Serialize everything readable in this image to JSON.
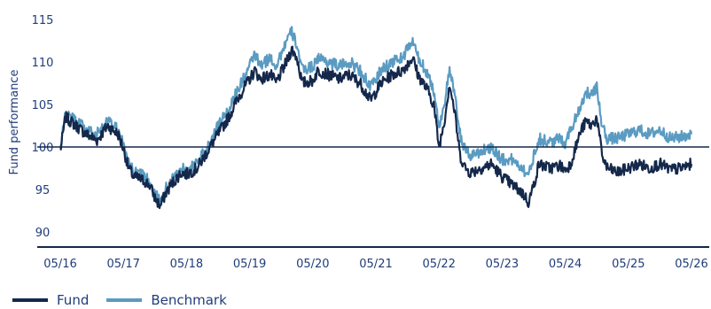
{
  "chart_data": {
    "type": "line",
    "title": "",
    "xlabel": "",
    "ylabel": "Fund performance",
    "ylim": [
      88,
      117
    ],
    "yticks": [
      90,
      95,
      100,
      105,
      110,
      115
    ],
    "x_ticks": [
      "05/16",
      "05/17",
      "05/18",
      "05/19",
      "05/20",
      "05/21",
      "05/22",
      "05/23",
      "05/24",
      "05/25",
      "05/26"
    ],
    "x_range": [
      "05/16",
      "05/26"
    ],
    "reference_line": 100,
    "legend_position": "bottom-left",
    "series": [
      {
        "name": "Fund",
        "color": "#14284b",
        "points": [
          [
            "2016-05",
            99.5
          ],
          [
            "2016-06",
            103.5
          ],
          [
            "2016-08",
            102.5
          ],
          [
            "2016-10",
            101.5
          ],
          [
            "2016-12",
            100.8
          ],
          [
            "2017-02",
            102.5
          ],
          [
            "2017-04",
            101.5
          ],
          [
            "2017-05",
            99.8
          ],
          [
            "2017-06",
            97.5
          ],
          [
            "2017-07",
            96.5
          ],
          [
            "2017-09",
            96.0
          ],
          [
            "2017-10",
            95.5
          ],
          [
            "2017-11",
            94.0
          ],
          [
            "2017-12",
            93.0
          ],
          [
            "2018-01",
            94.5
          ],
          [
            "2018-02",
            95.5
          ],
          [
            "2018-04",
            97.0
          ],
          [
            "2018-05",
            96.8
          ],
          [
            "2018-07",
            97.5
          ],
          [
            "2018-09",
            99.5
          ],
          [
            "2018-11",
            101.5
          ],
          [
            "2019-01",
            103.5
          ],
          [
            "2019-03",
            106.0
          ],
          [
            "2019-05",
            108.0
          ],
          [
            "2019-06",
            109.0
          ],
          [
            "2019-07",
            108.0
          ],
          [
            "2019-09",
            108.5
          ],
          [
            "2019-10",
            107.5
          ],
          [
            "2019-12",
            110.0
          ],
          [
            "2020-01",
            111.5
          ],
          [
            "2020-02",
            110.5
          ],
          [
            "2020-03",
            107.5
          ],
          [
            "2020-05",
            107.8
          ],
          [
            "2020-06",
            109.0
          ],
          [
            "2020-08",
            108.5
          ],
          [
            "2020-10",
            108.0
          ],
          [
            "2020-12",
            108.5
          ],
          [
            "2021-02",
            107.5
          ],
          [
            "2021-04",
            105.5
          ],
          [
            "2021-06",
            107.5
          ],
          [
            "2021-08",
            108.5
          ],
          [
            "2021-10",
            109.0
          ],
          [
            "2021-12",
            110.5
          ],
          [
            "2022-01",
            108.5
          ],
          [
            "2022-03",
            106.5
          ],
          [
            "2022-04",
            105.0
          ],
          [
            "2022-05",
            100.0
          ],
          [
            "2022-06",
            103.0
          ],
          [
            "2022-07",
            107.5
          ],
          [
            "2022-08",
            104.0
          ],
          [
            "2022-09",
            99.0
          ],
          [
            "2022-10",
            97.5
          ],
          [
            "2022-11",
            97.0
          ],
          [
            "2023-01",
            97.5
          ],
          [
            "2023-03",
            98.0
          ],
          [
            "2023-05",
            96.5
          ],
          [
            "2023-07",
            95.5
          ],
          [
            "2023-09",
            94.5
          ],
          [
            "2023-10",
            93.5
          ],
          [
            "2023-11",
            95.5
          ],
          [
            "2023-12",
            98.0
          ],
          [
            "2024-02",
            97.5
          ],
          [
            "2024-04",
            97.8
          ],
          [
            "2024-05",
            97.3
          ],
          [
            "2024-06",
            98.0
          ],
          [
            "2024-07",
            100.0
          ],
          [
            "2024-08",
            102.0
          ],
          [
            "2024-09",
            103.0
          ],
          [
            "2024-10",
            102.5
          ],
          [
            "2024-11",
            103.5
          ],
          [
            "2024-12",
            99.0
          ],
          [
            "2025-01",
            97.5
          ],
          [
            "2025-03",
            97.0
          ],
          [
            "2025-05",
            97.5
          ],
          [
            "2025-07",
            98.0
          ],
          [
            "2025-09",
            97.5
          ],
          [
            "2025-11",
            98.0
          ],
          [
            "2026-01",
            97.3
          ],
          [
            "2026-03",
            97.5
          ],
          [
            "2026-05",
            98.0
          ]
        ]
      },
      {
        "name": "Benchmark",
        "color": "#5b9bc2",
        "points": [
          [
            "2016-05",
            99.8
          ],
          [
            "2016-06",
            104.0
          ],
          [
            "2016-08",
            103.0
          ],
          [
            "2016-10",
            102.0
          ],
          [
            "2016-12",
            101.5
          ],
          [
            "2017-02",
            103.0
          ],
          [
            "2017-04",
            102.0
          ],
          [
            "2017-05",
            100.2
          ],
          [
            "2017-06",
            98.0
          ],
          [
            "2017-07",
            97.0
          ],
          [
            "2017-09",
            96.5
          ],
          [
            "2017-10",
            96.0
          ],
          [
            "2017-11",
            94.5
          ],
          [
            "2017-12",
            93.5
          ],
          [
            "2018-01",
            95.0
          ],
          [
            "2018-02",
            96.0
          ],
          [
            "2018-04",
            97.5
          ],
          [
            "2018-05",
            97.5
          ],
          [
            "2018-07",
            98.0
          ],
          [
            "2018-09",
            100.0
          ],
          [
            "2018-11",
            102.5
          ],
          [
            "2019-01",
            104.5
          ],
          [
            "2019-03",
            107.0
          ],
          [
            "2019-05",
            109.5
          ],
          [
            "2019-06",
            111.0
          ],
          [
            "2019-07",
            109.5
          ],
          [
            "2019-09",
            110.5
          ],
          [
            "2019-10",
            109.5
          ],
          [
            "2019-12",
            112.5
          ],
          [
            "2020-01",
            113.5
          ],
          [
            "2020-02",
            112.0
          ],
          [
            "2020-03",
            109.0
          ],
          [
            "2020-05",
            109.5
          ],
          [
            "2020-06",
            110.5
          ],
          [
            "2020-08",
            110.0
          ],
          [
            "2020-10",
            109.5
          ],
          [
            "2020-12",
            110.0
          ],
          [
            "2021-02",
            109.0
          ],
          [
            "2021-04",
            107.0
          ],
          [
            "2021-06",
            109.0
          ],
          [
            "2021-08",
            110.0
          ],
          [
            "2021-10",
            110.5
          ],
          [
            "2021-12",
            112.5
          ],
          [
            "2022-01",
            110.5
          ],
          [
            "2022-03",
            108.5
          ],
          [
            "2022-04",
            106.5
          ],
          [
            "2022-05",
            102.5
          ],
          [
            "2022-06",
            105.0
          ],
          [
            "2022-07",
            109.0
          ],
          [
            "2022-08",
            106.0
          ],
          [
            "2022-09",
            101.5
          ],
          [
            "2022-10",
            99.5
          ],
          [
            "2022-11",
            99.0
          ],
          [
            "2023-01",
            99.5
          ],
          [
            "2023-03",
            100.0
          ],
          [
            "2023-05",
            98.5
          ],
          [
            "2023-07",
            98.5
          ],
          [
            "2023-09",
            97.5
          ],
          [
            "2023-10",
            96.5
          ],
          [
            "2023-11",
            99.0
          ],
          [
            "2023-12",
            101.0
          ],
          [
            "2024-02",
            100.5
          ],
          [
            "2024-04",
            101.0
          ],
          [
            "2024-05",
            100.5
          ],
          [
            "2024-06",
            102.0
          ],
          [
            "2024-07",
            103.5
          ],
          [
            "2024-08",
            105.0
          ],
          [
            "2024-09",
            106.5
          ],
          [
            "2024-10",
            106.0
          ],
          [
            "2024-11",
            107.0
          ],
          [
            "2024-12",
            102.5
          ],
          [
            "2025-01",
            101.0
          ],
          [
            "2025-03",
            101.0
          ],
          [
            "2025-05",
            101.5
          ],
          [
            "2025-07",
            102.0
          ],
          [
            "2025-09",
            101.5
          ],
          [
            "2025-11",
            102.0
          ],
          [
            "2026-01",
            101.0
          ],
          [
            "2026-03",
            101.2
          ],
          [
            "2026-05",
            101.5
          ]
        ]
      }
    ]
  },
  "colors": {
    "axis": "#14284b",
    "tick_text": "#1f3d7a",
    "reference_line": "#14284b"
  }
}
